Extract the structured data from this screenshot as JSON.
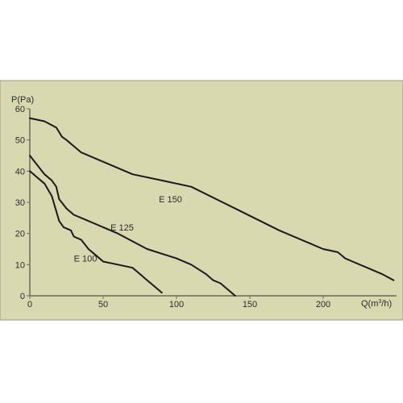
{
  "chart_data": {
    "type": "line",
    "ylabel": "P(Pa)",
    "xlabel_main": "Q(m",
    "xlabel_sup": "3",
    "xlabel_tail": "/h)",
    "xlim": [
      0,
      250
    ],
    "ylim": [
      0,
      60
    ],
    "x_ticks": [
      0,
      50,
      100,
      150,
      200
    ],
    "y_ticks": [
      0,
      10,
      20,
      30,
      40,
      50,
      60
    ],
    "grid": false,
    "background_color": "#d8d9b1",
    "axis_color": "#6b6b5a",
    "line_color": "#1a1a1a",
    "series": [
      {
        "name": "E 150",
        "label_at": [
          88,
          31
        ],
        "points": [
          [
            0,
            57
          ],
          [
            10,
            56
          ],
          [
            18,
            54
          ],
          [
            22,
            51
          ],
          [
            25,
            50
          ],
          [
            30,
            48
          ],
          [
            35,
            46
          ],
          [
            50,
            43
          ],
          [
            70,
            39
          ],
          [
            90,
            37
          ],
          [
            110,
            35
          ],
          [
            140,
            28
          ],
          [
            170,
            21
          ],
          [
            200,
            15
          ],
          [
            210,
            14
          ],
          [
            215,
            12
          ],
          [
            220,
            11
          ],
          [
            230,
            9
          ],
          [
            240,
            7
          ],
          [
            248,
            5
          ]
        ]
      },
      {
        "name": "E 125",
        "label_at": [
          55,
          22
        ],
        "points": [
          [
            0,
            45
          ],
          [
            5,
            42
          ],
          [
            10,
            39
          ],
          [
            15,
            37
          ],
          [
            18,
            35
          ],
          [
            20,
            31
          ],
          [
            25,
            28
          ],
          [
            30,
            26
          ],
          [
            40,
            24
          ],
          [
            60,
            20
          ],
          [
            80,
            15
          ],
          [
            100,
            12
          ],
          [
            110,
            10
          ],
          [
            120,
            7
          ],
          [
            125,
            5
          ],
          [
            130,
            4
          ],
          [
            135,
            2
          ],
          [
            140,
            0
          ]
        ]
      },
      {
        "name": "E 100",
        "label_at": [
          30,
          12
        ],
        "points": [
          [
            0,
            40
          ],
          [
            5,
            38
          ],
          [
            10,
            36
          ],
          [
            15,
            32
          ],
          [
            20,
            24
          ],
          [
            23,
            22
          ],
          [
            28,
            21
          ],
          [
            30,
            19
          ],
          [
            35,
            18
          ],
          [
            40,
            15
          ],
          [
            45,
            13
          ],
          [
            50,
            11
          ],
          [
            60,
            10
          ],
          [
            70,
            9
          ],
          [
            75,
            7
          ],
          [
            80,
            5
          ],
          [
            85,
            3
          ],
          [
            90,
            1
          ]
        ]
      }
    ]
  }
}
